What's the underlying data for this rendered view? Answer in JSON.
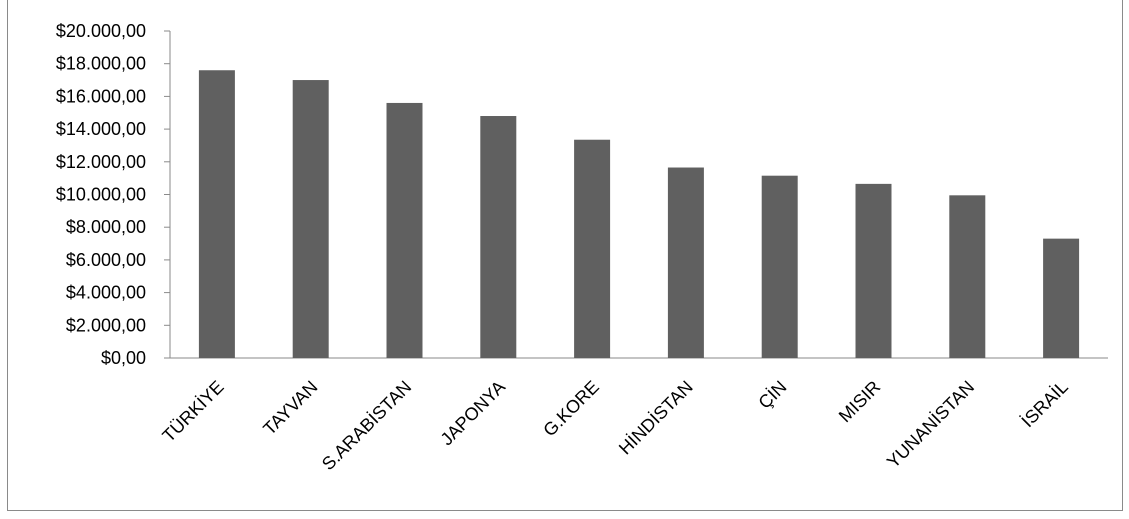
{
  "chart_data": {
    "type": "bar",
    "title": "",
    "categories": [
      "TÜRKİYE",
      "TAYVAN",
      "S.ARABİSTAN",
      "JAPONYA",
      "G.KORE",
      "HİNDİSTAN",
      "ÇİN",
      "MISIR",
      "YUNANİSTAN",
      "İSRAİL"
    ],
    "values": [
      17600,
      17000,
      15600,
      14800,
      13350,
      11650,
      11150,
      10650,
      9950,
      7300
    ],
    "ylim": [
      0,
      20000
    ],
    "yticks": [
      0,
      2000,
      4000,
      6000,
      8000,
      10000,
      12000,
      14000,
      16000,
      18000,
      20000
    ],
    "ytick_labels": [
      "$0,00",
      "$2.000,00",
      "$4.000,00",
      "$6.000,00",
      "$8.000,00",
      "$10.000,00",
      "$12.000,00",
      "$14.000,00",
      "$16.000,00",
      "$18.000,00",
      "$20.000,00"
    ],
    "xlabel": "",
    "ylabel": "",
    "grid": false,
    "legend": "none",
    "bar_color": "#606060",
    "axis_color": "#8a8a8a"
  }
}
